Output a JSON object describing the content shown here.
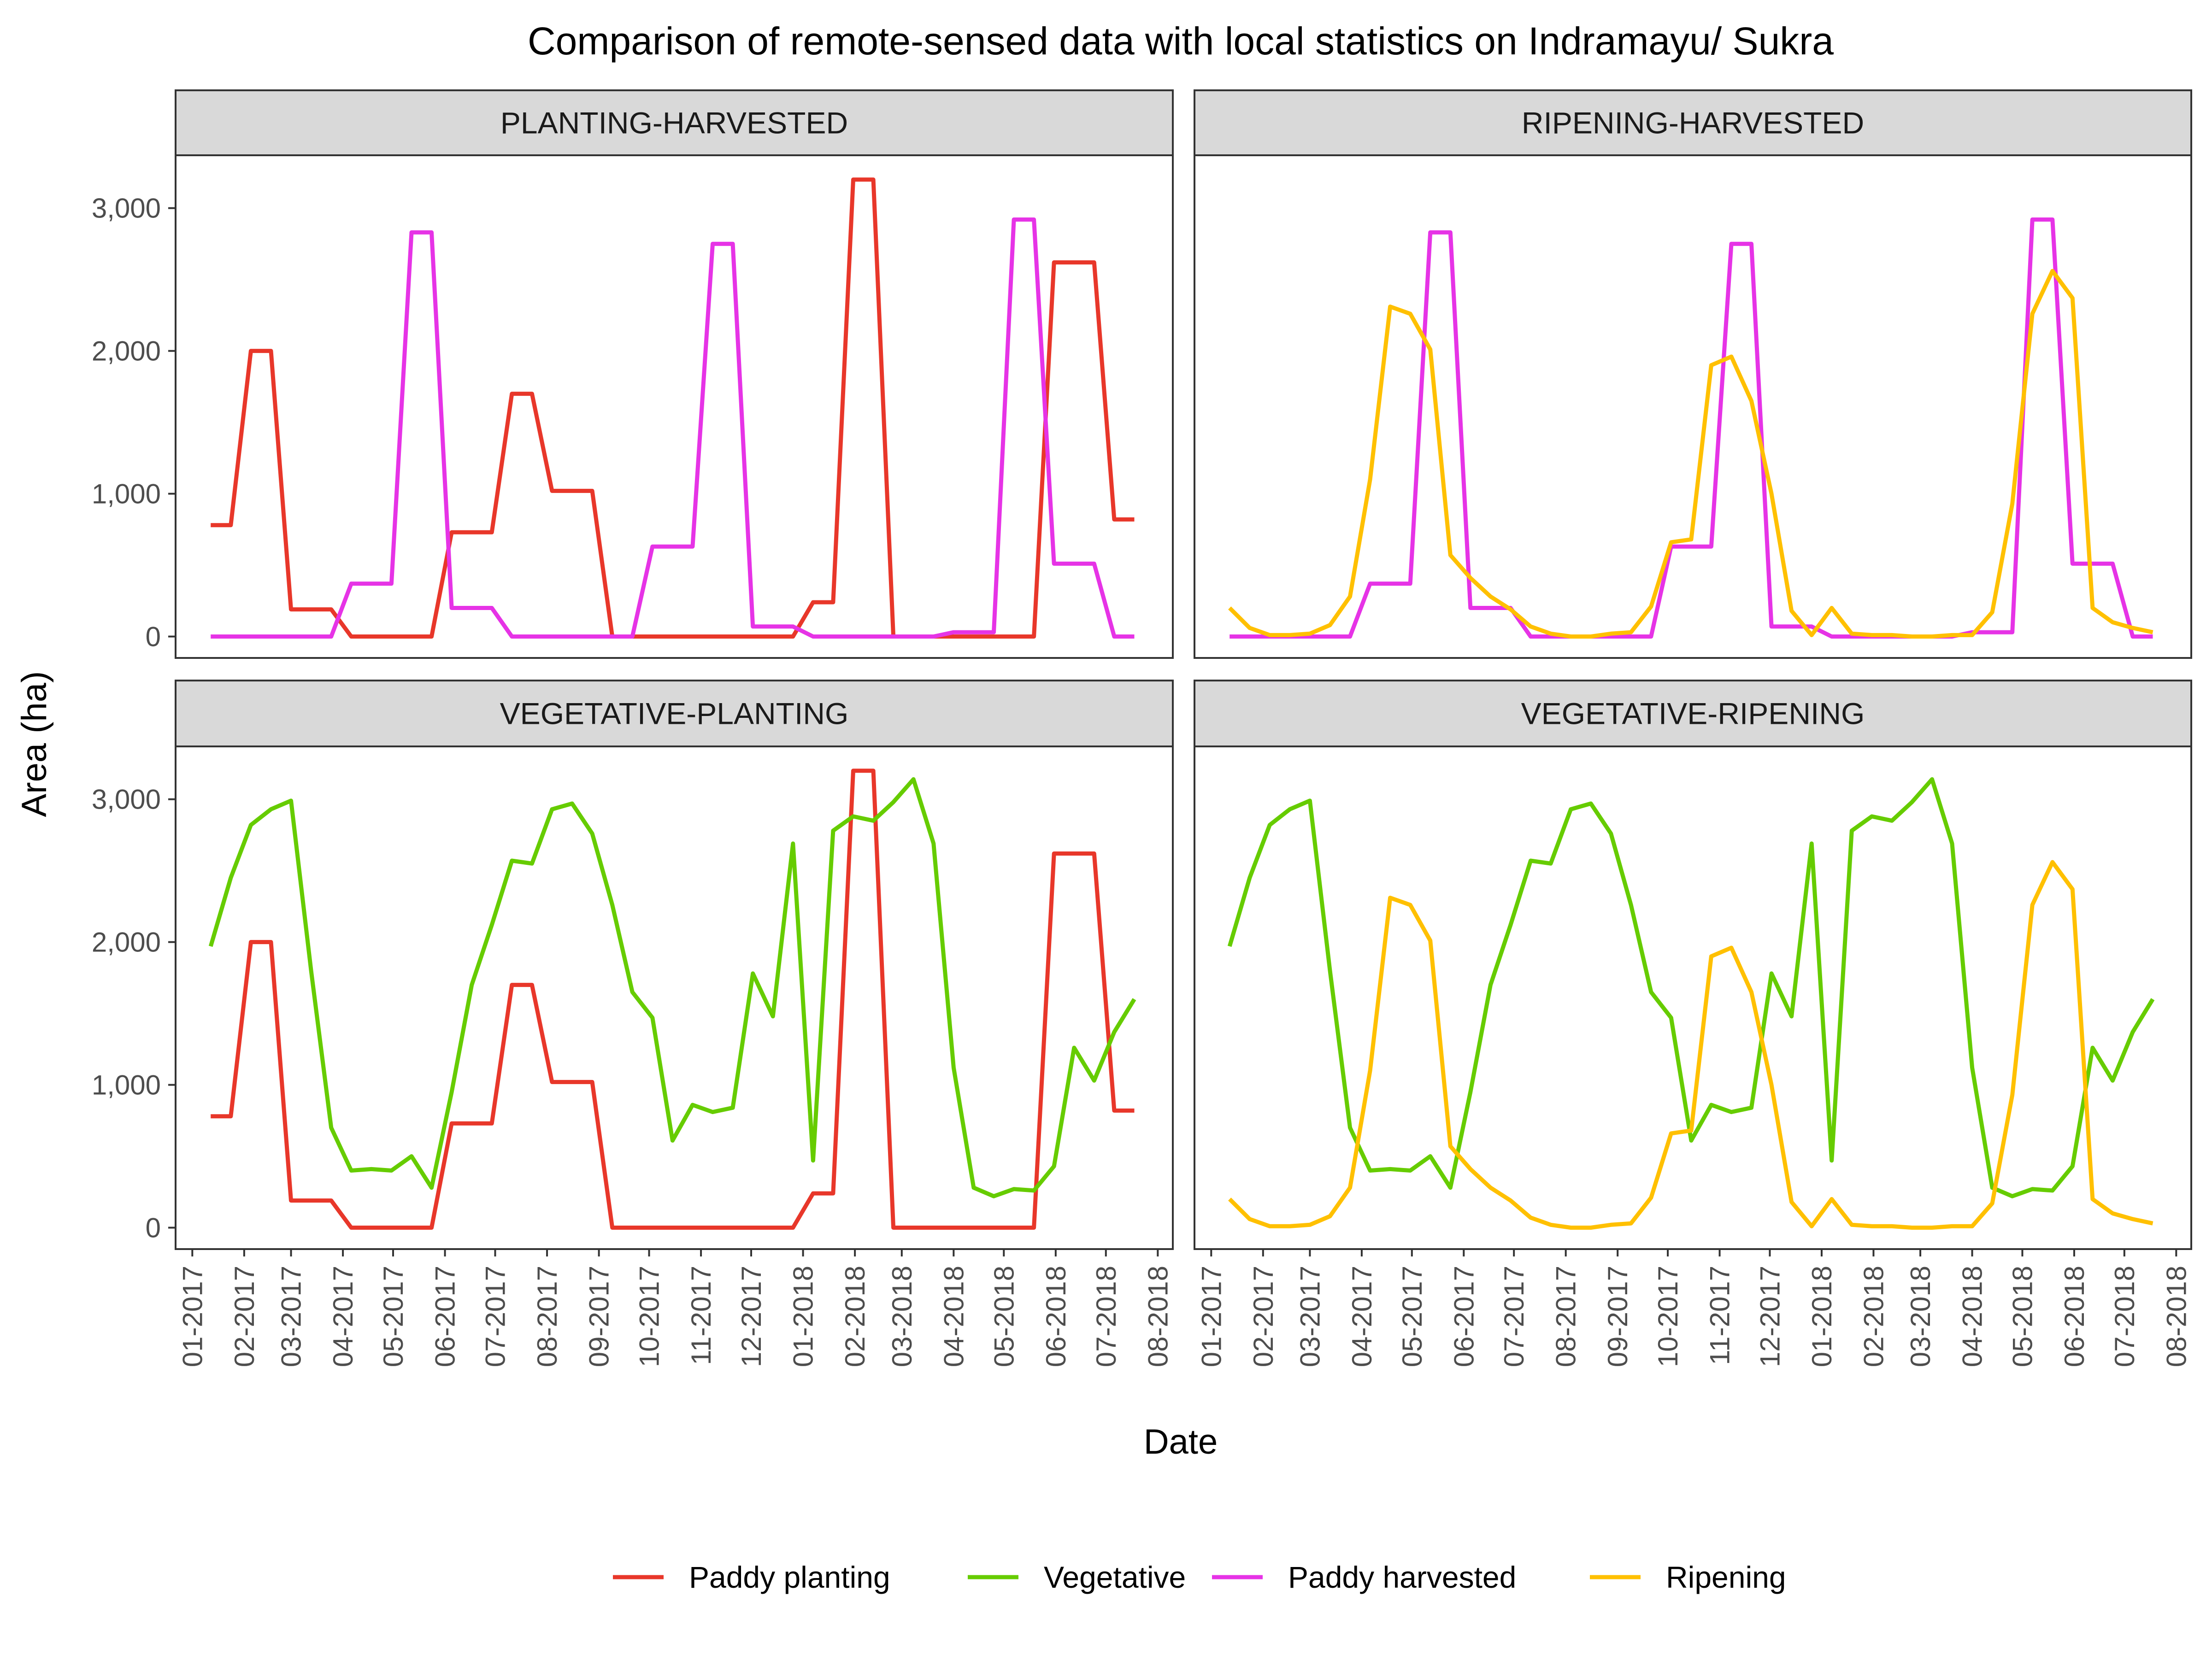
{
  "chart_data": {
    "type": "line",
    "title": "Comparison of remote-sensed data with local statistics on Indramayu/ Sukra",
    "xlabel": "Date",
    "ylabel": "Area (ha)",
    "ylim": [
      -150,
      3370
    ],
    "xlim": [
      "2016-12-22",
      "2018-08-10"
    ],
    "grid": false,
    "legend_position": "bottom",
    "y_ticks": [
      0,
      1000,
      2000,
      3000
    ],
    "y_tick_labels": [
      "0",
      "1,000",
      "2,000",
      "3,000"
    ],
    "x_ticks": [
      "2017-01-01",
      "2017-02-01",
      "2017-03-01",
      "2017-04-01",
      "2017-05-01",
      "2017-06-01",
      "2017-07-01",
      "2017-08-01",
      "2017-09-01",
      "2017-10-01",
      "2017-11-01",
      "2017-12-01",
      "2018-01-01",
      "2018-02-01",
      "2018-03-01",
      "2018-04-01",
      "2018-05-01",
      "2018-06-01",
      "2018-07-01",
      "2018-08-01"
    ],
    "x_tick_labels": [
      "01-2017",
      "02-2017",
      "03-2017",
      "04-2017",
      "05-2017",
      "06-2017",
      "07-2017",
      "08-2017",
      "09-2017",
      "10-2017",
      "11-2017",
      "12-2017",
      "01-2018",
      "02-2018",
      "03-2018",
      "04-2018",
      "05-2018",
      "06-2018",
      "07-2018",
      "08-2018"
    ],
    "colors": {
      "Paddy planting": "#e8372a",
      "Vegetative": "#66cc00",
      "Paddy harvested": "#e633e6",
      "Ripening": "#ffc000"
    },
    "legend": [
      "Paddy planting",
      "Vegetative",
      "Paddy harvested",
      "Ripening"
    ],
    "panels": [
      {
        "strip": "PLANTING-HARVESTED",
        "series": [
          "Paddy planting",
          "Paddy harvested"
        ]
      },
      {
        "strip": "RIPENING-HARVESTED",
        "series": [
          "Paddy harvested",
          "Ripening"
        ]
      },
      {
        "strip": "VEGETATIVE-PLANTING",
        "series": [
          "Paddy planting",
          "Vegetative"
        ]
      },
      {
        "strip": "VEGETATIVE-RIPENING",
        "series": [
          "Vegetative",
          "Ripening"
        ]
      }
    ],
    "series": [
      {
        "name": "Paddy planting",
        "x": [
          "2017-01-12",
          "2017-01-24",
          "2017-02-05",
          "2017-02-17",
          "2017-03-01",
          "2017-03-13",
          "2017-03-25",
          "2017-04-06",
          "2017-04-18",
          "2017-04-30",
          "2017-05-12",
          "2017-05-24",
          "2017-06-05",
          "2017-06-17",
          "2017-06-29",
          "2017-07-11",
          "2017-07-23",
          "2017-08-04",
          "2017-08-16",
          "2017-08-28",
          "2017-09-09",
          "2017-09-21",
          "2017-10-03",
          "2017-10-15",
          "2017-10-27",
          "2017-11-08",
          "2017-11-20",
          "2017-12-02",
          "2017-12-14",
          "2017-12-26",
          "2018-01-07",
          "2018-01-19",
          "2018-01-31",
          "2018-02-12",
          "2018-02-24",
          "2018-03-08",
          "2018-03-20",
          "2018-04-01",
          "2018-04-13",
          "2018-04-25",
          "2018-05-07",
          "2018-05-19",
          "2018-05-31",
          "2018-06-12",
          "2018-06-24",
          "2018-07-06",
          "2018-07-18"
        ],
        "values": [
          780,
          780,
          2000,
          2000,
          190,
          190,
          190,
          0,
          0,
          0,
          0,
          0,
          730,
          730,
          730,
          1700,
          1700,
          1020,
          1020,
          1020,
          0,
          0,
          0,
          0,
          0,
          0,
          0,
          0,
          0,
          0,
          240,
          240,
          3200,
          3200,
          0,
          0,
          0,
          0,
          0,
          0,
          0,
          0,
          2620,
          2620,
          2620,
          820,
          820
        ]
      },
      {
        "name": "Vegetative",
        "x": [
          "2017-01-12",
          "2017-01-24",
          "2017-02-05",
          "2017-02-17",
          "2017-03-01",
          "2017-03-13",
          "2017-03-25",
          "2017-04-06",
          "2017-04-18",
          "2017-04-30",
          "2017-05-12",
          "2017-05-24",
          "2017-06-05",
          "2017-06-17",
          "2017-06-29",
          "2017-07-11",
          "2017-07-23",
          "2017-08-04",
          "2017-08-16",
          "2017-08-28",
          "2017-09-09",
          "2017-09-21",
          "2017-10-03",
          "2017-10-15",
          "2017-10-27",
          "2017-11-08",
          "2017-11-20",
          "2017-12-02",
          "2017-12-14",
          "2017-12-26",
          "2018-01-07",
          "2018-01-19",
          "2018-01-31",
          "2018-02-12",
          "2018-02-24",
          "2018-03-08",
          "2018-03-20",
          "2018-04-01",
          "2018-04-13",
          "2018-04-25",
          "2018-05-07",
          "2018-05-19",
          "2018-05-31",
          "2018-06-12",
          "2018-06-24",
          "2018-07-06",
          "2018-07-18"
        ],
        "values": [
          1970,
          2450,
          2820,
          2930,
          2990,
          1800,
          700,
          400,
          410,
          400,
          500,
          280,
          950,
          1700,
          2120,
          2570,
          2550,
          2930,
          2970,
          2760,
          2260,
          1650,
          1470,
          610,
          860,
          810,
          840,
          1780,
          1480,
          2690,
          470,
          2780,
          2880,
          2850,
          2980,
          3140,
          2690,
          1120,
          280,
          220,
          270,
          260,
          430,
          1260,
          1030,
          1370,
          1600
        ]
      },
      {
        "name": "Paddy harvested",
        "x": [
          "2017-01-12",
          "2017-01-24",
          "2017-02-05",
          "2017-02-17",
          "2017-03-01",
          "2017-03-13",
          "2017-03-25",
          "2017-04-06",
          "2017-04-18",
          "2017-04-30",
          "2017-05-12",
          "2017-05-24",
          "2017-06-05",
          "2017-06-17",
          "2017-06-29",
          "2017-07-11",
          "2017-07-23",
          "2017-08-04",
          "2017-08-16",
          "2017-08-28",
          "2017-09-09",
          "2017-09-21",
          "2017-10-03",
          "2017-10-15",
          "2017-10-27",
          "2017-11-08",
          "2017-11-20",
          "2017-12-02",
          "2017-12-14",
          "2017-12-26",
          "2018-01-07",
          "2018-01-19",
          "2018-01-31",
          "2018-02-12",
          "2018-02-24",
          "2018-03-08",
          "2018-03-20",
          "2018-04-01",
          "2018-04-13",
          "2018-04-25",
          "2018-05-07",
          "2018-05-19",
          "2018-05-31",
          "2018-06-12",
          "2018-06-24",
          "2018-07-06",
          "2018-07-18"
        ],
        "values": [
          0,
          0,
          0,
          0,
          0,
          0,
          0,
          370,
          370,
          370,
          2830,
          2830,
          200,
          200,
          200,
          0,
          0,
          0,
          0,
          0,
          0,
          0,
          630,
          630,
          630,
          2750,
          2750,
          70,
          70,
          70,
          0,
          0,
          0,
          0,
          0,
          0,
          0,
          30,
          30,
          30,
          2920,
          2920,
          510,
          510,
          510,
          0,
          0
        ]
      },
      {
        "name": "Ripening",
        "x": [
          "2017-01-12",
          "2017-01-24",
          "2017-02-05",
          "2017-02-17",
          "2017-03-01",
          "2017-03-13",
          "2017-03-25",
          "2017-04-06",
          "2017-04-18",
          "2017-04-30",
          "2017-05-12",
          "2017-05-24",
          "2017-06-05",
          "2017-06-17",
          "2017-06-29",
          "2017-07-11",
          "2017-07-23",
          "2017-08-04",
          "2017-08-16",
          "2017-08-28",
          "2017-09-09",
          "2017-09-21",
          "2017-10-03",
          "2017-10-15",
          "2017-10-27",
          "2017-11-08",
          "2017-11-20",
          "2017-12-02",
          "2017-12-14",
          "2017-12-26",
          "2018-01-07",
          "2018-01-19",
          "2018-01-31",
          "2018-02-12",
          "2018-02-24",
          "2018-03-08",
          "2018-03-20",
          "2018-04-01",
          "2018-04-13",
          "2018-04-25",
          "2018-05-07",
          "2018-05-19",
          "2018-05-31",
          "2018-06-12",
          "2018-06-24",
          "2018-07-06",
          "2018-07-18"
        ],
        "values": [
          200,
          60,
          10,
          10,
          20,
          80,
          280,
          1100,
          2310,
          2260,
          2010,
          570,
          410,
          280,
          190,
          70,
          20,
          0,
          0,
          20,
          30,
          210,
          660,
          680,
          1900,
          1960,
          1650,
          1000,
          180,
          10,
          200,
          20,
          10,
          10,
          0,
          0,
          10,
          10,
          170,
          930,
          2260,
          2560,
          2370,
          200,
          100,
          60,
          30
        ]
      }
    ]
  }
}
